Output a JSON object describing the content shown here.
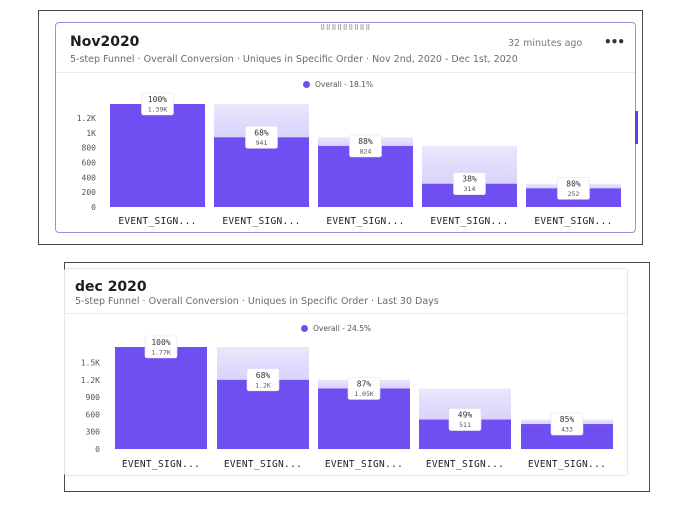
{
  "colors": {
    "bar": "#6f4ef2",
    "ghost": "#d9d3fb",
    "accent": "#5b40e6",
    "legend_dot": "#6f4ef2"
  },
  "icons": {
    "menu": "more-horizontal-icon",
    "drag": "drag-handle-icon"
  },
  "cards": [
    {
      "title": "Nov2020",
      "subtitle": "5-step Funnel · Overall Conversion · Uniques in Specific Order · Nov 2nd, 2020 - Dec 1st, 2020",
      "time": "32 minutes ago",
      "menu": "•••",
      "drag": "⠿⠿⠿⠿⠿⠿⠿⠿⠿"
    },
    {
      "title": "dec 2020",
      "subtitle": "5-step Funnel · Overall Conversion · Uniques in Specific Order · Last 30 Days"
    }
  ],
  "chart_data": [
    {
      "type": "bar",
      "legend": "Overall - 18.1%",
      "categories": [
        "EVENT_SIGN...",
        "EVENT_SIGN...",
        "EVENT_SIGN...",
        "EVENT_SIGN...",
        "EVENT_SIGN..."
      ],
      "values": [
        1390,
        941,
        824,
        314,
        252
      ],
      "pct_labels": [
        "100%",
        "68%",
        "88%",
        "38%",
        "80%"
      ],
      "value_labels": [
        "1.39K",
        "941",
        "824",
        "314",
        "252"
      ],
      "yticks": [
        0,
        200,
        400,
        600,
        800,
        1000,
        1200
      ],
      "ytick_labels": [
        "0",
        "200",
        "400",
        "600",
        "800",
        "1K",
        "1.2K"
      ],
      "ylim": [
        0,
        1390
      ]
    },
    {
      "type": "bar",
      "legend": "Overall - 24.5%",
      "categories": [
        "EVENT_SIGN...",
        "EVENT_SIGN...",
        "EVENT_SIGN...",
        "EVENT_SIGN...",
        "EVENT_SIGN..."
      ],
      "values": [
        1770,
        1200,
        1050,
        511,
        433
      ],
      "pct_labels": [
        "100%",
        "68%",
        "87%",
        "49%",
        "85%"
      ],
      "value_labels": [
        "1.77K",
        "1.2K",
        "1.05K",
        "511",
        "433"
      ],
      "yticks": [
        0,
        300,
        600,
        900,
        1200,
        1500
      ],
      "ytick_labels": [
        "0",
        "300",
        "600",
        "900",
        "1.2K",
        "1.5K"
      ],
      "ylim": [
        0,
        1770
      ]
    }
  ]
}
